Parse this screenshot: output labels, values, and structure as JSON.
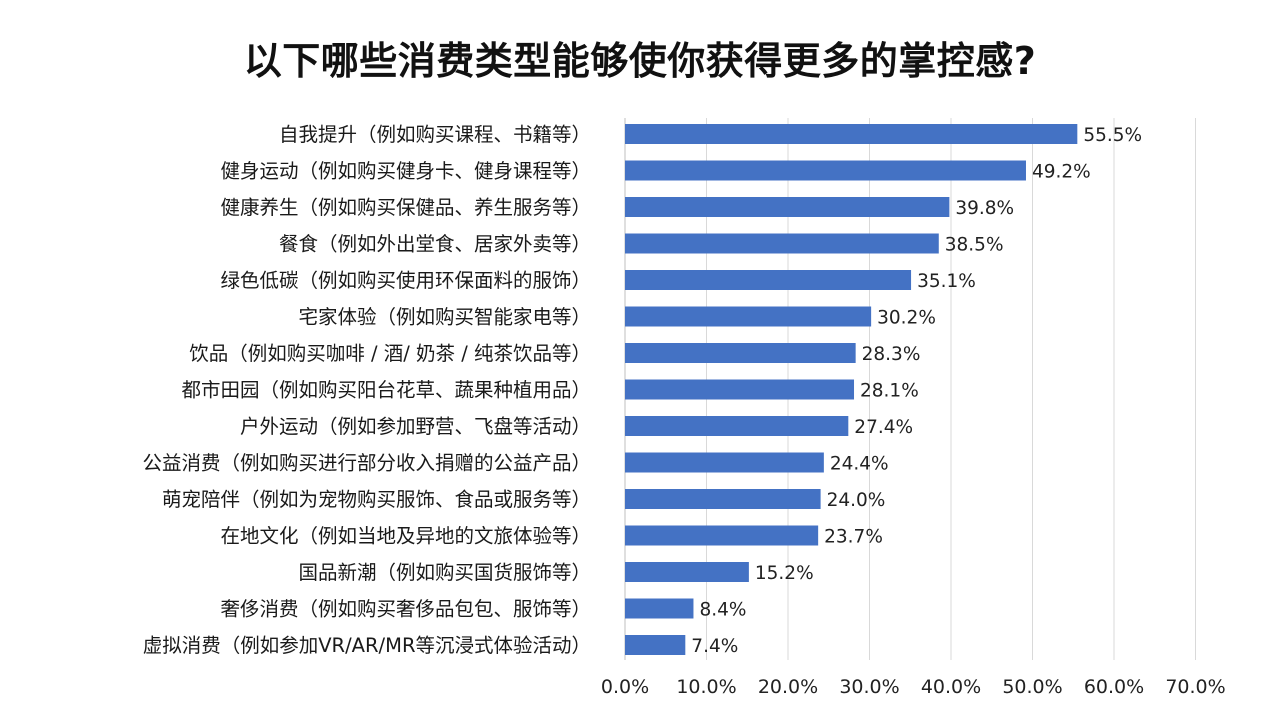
{
  "chart_data": {
    "type": "bar",
    "orientation": "horizontal",
    "title": "以下哪些消费类型能够使你获得更多的掌控感?",
    "xlabel": "",
    "ylabel": "",
    "xlim": [
      0,
      70
    ],
    "x_ticks": [
      0,
      10,
      20,
      30,
      40,
      50,
      60,
      70
    ],
    "x_tick_labels": [
      "0.0%",
      "10.0%",
      "20.0%",
      "30.0%",
      "40.0%",
      "50.0%",
      "60.0%",
      "70.0%"
    ],
    "grid": true,
    "bar_color": "#4472C4",
    "categories": [
      "自我提升（例如购买课程、书籍等）",
      "健身运动（例如购买健身卡、健身课程等）",
      "健康养生（例如购买保健品、养生服务等）",
      "餐食（例如外出堂食、居家外卖等）",
      "绿色低碳（例如购买使用环保面料的服饰）",
      "宅家体验（例如购买智能家电等）",
      "饮品（例如购买咖啡 / 酒/ 奶茶 / 纯茶饮品等）",
      "都市田园（例如购买阳台花草、蔬果种植用品）",
      "户外运动（例如参加野营、飞盘等活动）",
      "公益消费（例如购买进行部分收入捐赠的公益产品）",
      "萌宠陪伴（例如为宠物购买服饰、食品或服务等）",
      "在地文化（例如当地及异地的文旅体验等）",
      "国品新潮（例如购买国货服饰等）",
      "奢侈消费（例如购买奢侈品包包、服饰等）",
      "虚拟消费（例如参加VR/AR/MR等沉浸式体验活动）"
    ],
    "values": [
      55.5,
      49.2,
      39.8,
      38.5,
      35.1,
      30.2,
      28.3,
      28.1,
      27.4,
      24.4,
      24.0,
      23.7,
      15.2,
      8.4,
      7.4
    ],
    "value_labels": [
      "55.5%",
      "49.2%",
      "39.8%",
      "38.5%",
      "35.1%",
      "30.2%",
      "28.3%",
      "28.1%",
      "27.4%",
      "24.4%",
      "24.0%",
      "23.7%",
      "15.2%",
      "8.4%",
      "7.4%"
    ]
  }
}
